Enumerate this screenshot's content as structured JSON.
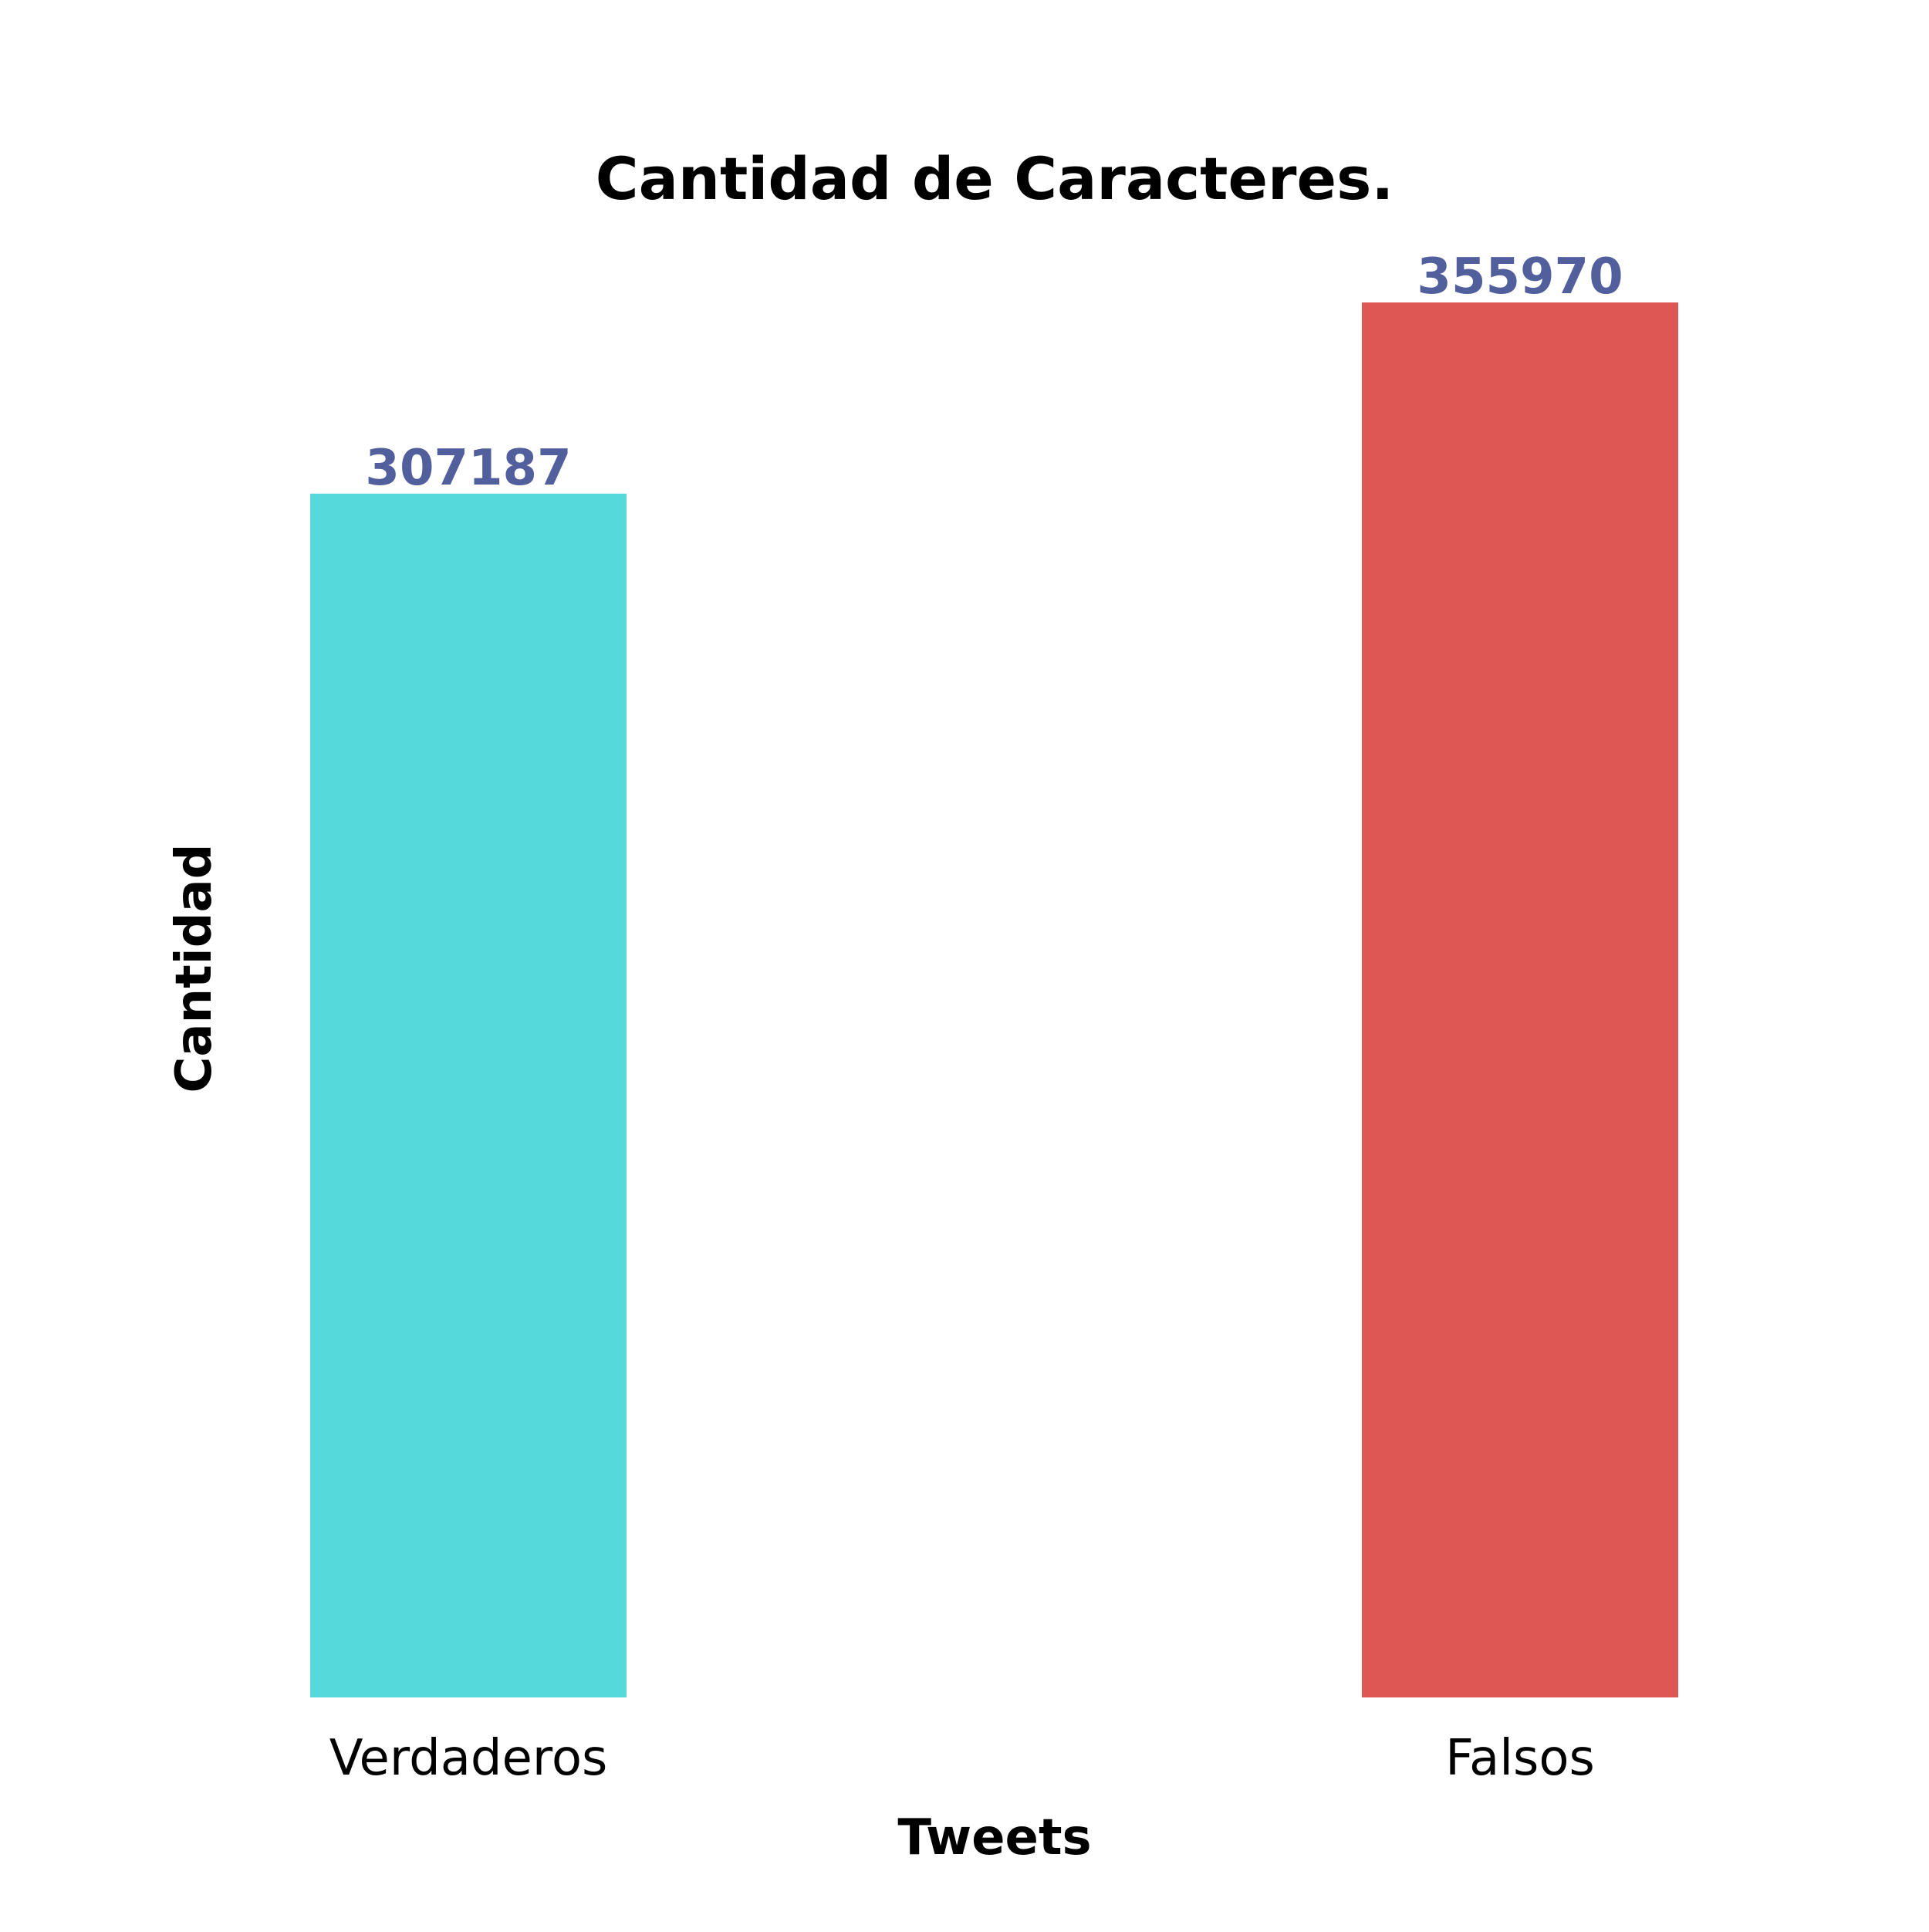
{
  "chart_data": {
    "type": "bar",
    "title": "Cantidad de Caracteres.",
    "xlabel": "Tweets",
    "ylabel": "Cantidad",
    "categories": [
      "Verdaderos",
      "Falsos"
    ],
    "values": [
      307187,
      355970
    ],
    "data_labels": [
      "307187",
      "355970"
    ],
    "colors": [
      "#55d9db",
      "#dd5754"
    ],
    "label_color": "#525f9d",
    "ylim": [
      0,
      355970
    ],
    "grid": false,
    "legend": "none"
  }
}
